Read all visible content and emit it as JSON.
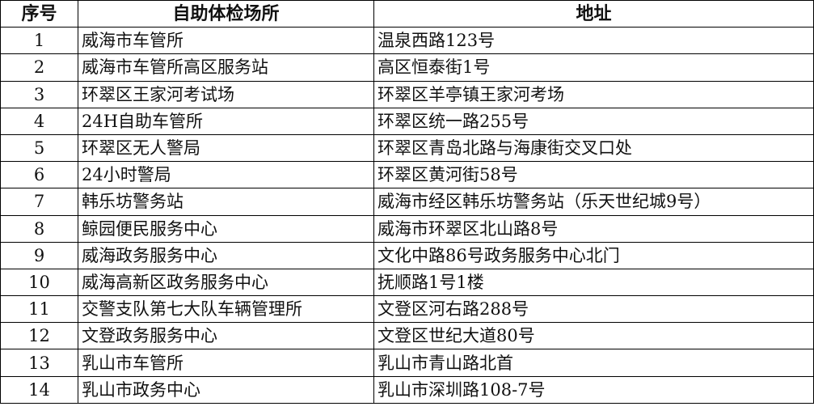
{
  "table": {
    "headers": [
      "序号",
      "自助体检场所",
      "地址"
    ],
    "rows": [
      [
        "1",
        "威海市车管所",
        "温泉西路123号"
      ],
      [
        "2",
        "威海市车管所高区服务站",
        "高区恒泰街1号"
      ],
      [
        "3",
        "环翠区王家河考试场",
        "环翠区羊亭镇王家河考场"
      ],
      [
        "4",
        "24H自助车管所",
        "环翠区统一路255号"
      ],
      [
        "5",
        "环翠区无人警局",
        "环翠区青岛北路与海康街交叉口处"
      ],
      [
        "6",
        "24小时警局",
        "环翠区黄河街58号"
      ],
      [
        "7",
        "韩乐坊警务站",
        "威海市经区韩乐坊警务站（乐天世纪城9号）"
      ],
      [
        "8",
        "鲸园便民服务中心",
        "威海市环翠区北山路8号"
      ],
      [
        "9",
        "威海政务服务中心",
        "文化中路86号政务服务中心北门"
      ],
      [
        "10",
        "威海高新区政务服务中心",
        "抚顺路1号1楼"
      ],
      [
        "11",
        "交警支队第七大队车辆管理所",
        "文登区河右路288号"
      ],
      [
        "12",
        "文登政务服务中心",
        "文登区世纪大道80号"
      ],
      [
        "13",
        "乳山市车管所",
        "乳山市青山路北首"
      ],
      [
        "14",
        "乳山市政务中心",
        "乳山市深圳路108-7号"
      ]
    ]
  }
}
